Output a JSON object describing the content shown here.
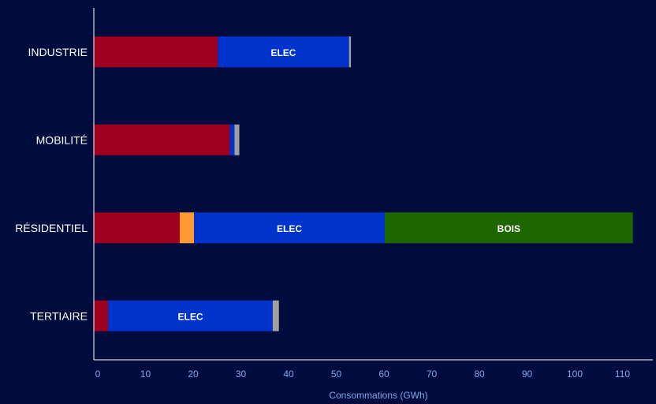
{
  "chart_data": {
    "type": "bar",
    "orientation": "horizontal",
    "stacked": true,
    "title": "",
    "xlabel": "Consommations (GWh)",
    "ylabel": "",
    "xlim": [
      0,
      115
    ],
    "x_ticks": [
      0,
      10,
      20,
      30,
      40,
      50,
      60,
      70,
      80,
      90,
      100,
      110
    ],
    "grid": false,
    "legend": "none",
    "background_color": "#000c3d",
    "axis_color": "#ffffff",
    "tick_label_color": "#7fa6ec",
    "categories": [
      "INDUSTRIE",
      "MOBILITÉ",
      "RÉSIDENTIEL",
      "TERTIAIRE"
    ],
    "series": [
      {
        "color": "#9e001e",
        "values": [
          26,
          28.5,
          18,
          3
        ]
      },
      {
        "color": "#ff9933",
        "values": [
          0,
          0,
          3,
          0
        ]
      },
      {
        "label": "ELEC",
        "color": "#0033cc",
        "values": [
          27.5,
          1,
          40,
          34.5
        ]
      },
      {
        "label": "BOIS",
        "color": "#1e6600",
        "values": [
          0,
          0,
          52,
          0
        ]
      },
      {
        "color": "#a0a0a0",
        "values": [
          0.4,
          1,
          0,
          1.3
        ]
      }
    ]
  }
}
